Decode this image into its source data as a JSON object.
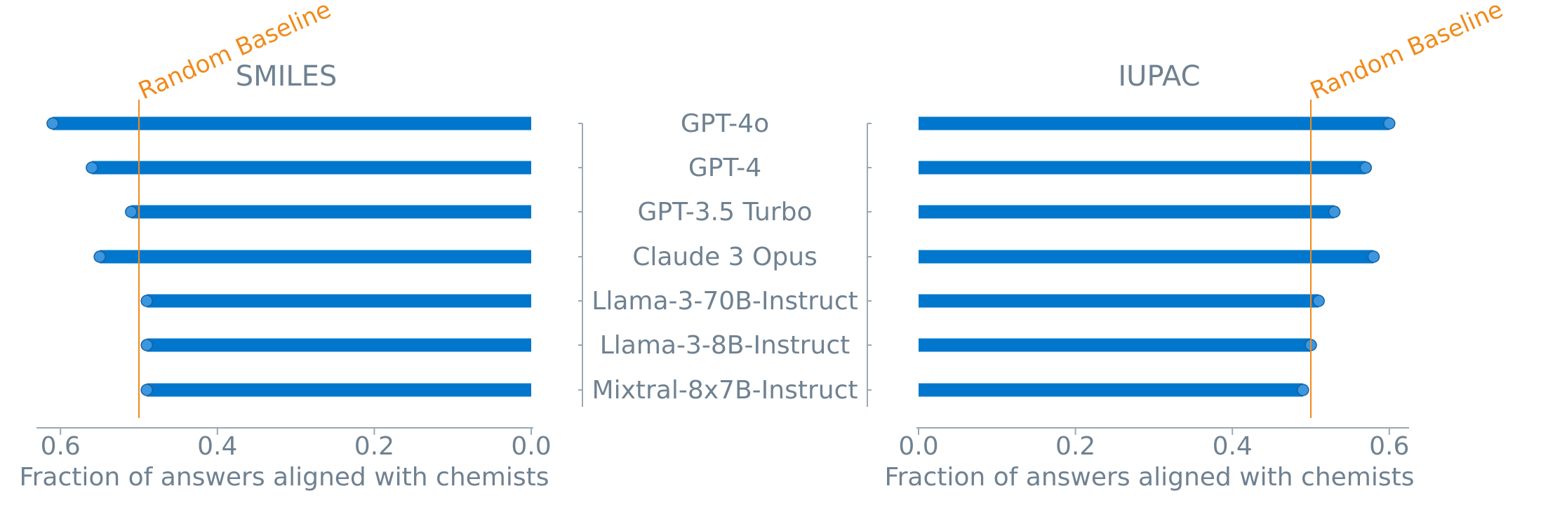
{
  "chart_data": [
    {
      "type": "bar",
      "orientation": "horizontal",
      "title": "SMILES",
      "xlabel": "Fraction of answers aligned with chemists",
      "x_reversed": true,
      "xlim": [
        0.0,
        0.62
      ],
      "xticks": [
        "0.0",
        "0.2",
        "0.4",
        "0.6"
      ],
      "categories": [
        "GPT-4o",
        "GPT-4",
        "GPT-3.5 Turbo",
        "Claude 3 Opus",
        "Llama-3-70B-Instruct",
        "Llama-3-8B-Instruct",
        "Mixtral-8x7B-Instruct"
      ],
      "values": [
        0.61,
        0.56,
        0.51,
        0.55,
        0.49,
        0.49,
        0.49
      ],
      "baseline": {
        "label": "Random Baseline",
        "value": 0.5
      }
    },
    {
      "type": "bar",
      "orientation": "horizontal",
      "title": "IUPAC",
      "xlabel": "Fraction of answers aligned with chemists",
      "x_reversed": false,
      "xlim": [
        0.0,
        0.62
      ],
      "xticks": [
        "0.0",
        "0.2",
        "0.4",
        "0.6"
      ],
      "categories": [
        "GPT-4o",
        "GPT-4",
        "GPT-3.5 Turbo",
        "Claude 3 Opus",
        "Llama-3-70B-Instruct",
        "Llama-3-8B-Instruct",
        "Mixtral-8x7B-Instruct"
      ],
      "values": [
        0.6,
        0.57,
        0.53,
        0.58,
        0.51,
        0.5,
        0.49
      ],
      "baseline": {
        "label": "Random Baseline",
        "value": 0.5
      }
    }
  ],
  "colors": {
    "bar": "#0077cc",
    "bar_cap": "#3a97e0",
    "baseline": "#f08a1a",
    "text": "#6f8191",
    "axis": "#9aa9b6"
  }
}
